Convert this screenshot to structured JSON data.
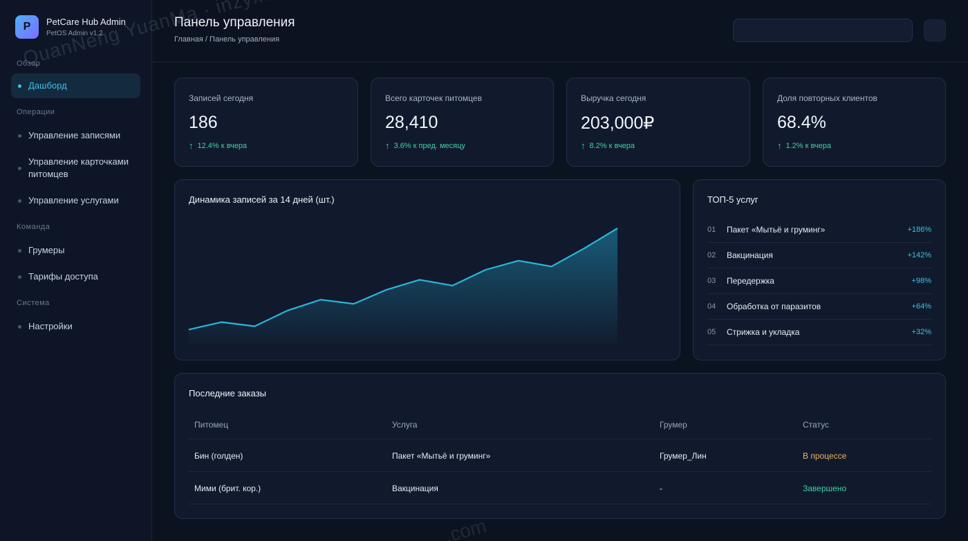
{
  "brand": {
    "name": "PetCare Hub Admin",
    "sub": "PetOS Admin v1.2",
    "logo_letter": "P"
  },
  "sidebar": {
    "groups": [
      {
        "label": "Обзор",
        "items": [
          {
            "label": "Дашборд",
            "active": true
          }
        ]
      },
      {
        "label": "Операции",
        "items": [
          {
            "label": "Управление записями"
          },
          {
            "label": "Управление карточками питомцев"
          },
          {
            "label": "Управление услугами"
          }
        ]
      },
      {
        "label": "Команда",
        "items": [
          {
            "label": "Грумеры"
          },
          {
            "label": "Тарифы доступа"
          }
        ]
      },
      {
        "label": "Система",
        "items": [
          {
            "label": "Настройки"
          }
        ]
      }
    ]
  },
  "header": {
    "title": "Панель управления",
    "breadcrumb": "Главная / Панель управления",
    "search_value": ""
  },
  "stats": [
    {
      "label": "Записей сегодня",
      "value": "186",
      "trend": "12.4% к вчера"
    },
    {
      "label": "Всего карточек питомцев",
      "value": "28,410",
      "trend": "3.6% к пред. месяцу"
    },
    {
      "label": "Выручка сегодня",
      "value": "203,000₽",
      "trend": "8.2% к вчера"
    },
    {
      "label": "Доля повторных клиентов",
      "value": "68.4%",
      "trend": "1.2% к вчера"
    }
  ],
  "trend_arrow": "↑",
  "chart_data": {
    "type": "area",
    "title": "Динамика записей за 14 дней (шт.)",
    "x": [
      1,
      2,
      3,
      4,
      5,
      6,
      7,
      8,
      9,
      10,
      11,
      12,
      13,
      14
    ],
    "values": [
      18,
      27,
      22,
      41,
      54,
      49,
      66,
      78,
      71,
      90,
      101,
      94,
      116,
      140
    ],
    "ylim": [
      0,
      150
    ],
    "grid": false,
    "color": "#2bb6d9"
  },
  "top_services": {
    "title": "ТОП-5 услуг",
    "items": [
      {
        "idx": "01",
        "name": "Пакет «Мытьё и груминг»",
        "value": "+186%"
      },
      {
        "idx": "02",
        "name": "Вакцинация",
        "value": "+142%"
      },
      {
        "idx": "03",
        "name": "Передержка",
        "value": "+98%"
      },
      {
        "idx": "04",
        "name": "Обработка от паразитов",
        "value": "+64%"
      },
      {
        "idx": "05",
        "name": "Стрижка и укладка",
        "value": "+32%"
      }
    ]
  },
  "orders": {
    "title": "Последние заказы",
    "columns": [
      "Питомец",
      "Услуга",
      "Грумер",
      "Статус"
    ],
    "rows": [
      {
        "pet": "Бин (голден)",
        "service": "Пакет «Мытьё и груминг»",
        "groomer": "Грумер_Лин",
        "status": "В процессе",
        "status_type": "progress"
      },
      {
        "pet": "Мими (брит. кор.)",
        "service": "Вакцинация",
        "groomer": "-",
        "status": "Завершено",
        "status_type": "done"
      }
    ]
  },
  "watermark": {
    "text": "QuanNeng YuanMa · inzyxuashop.com",
    "text2": ".com"
  },
  "colors": {
    "accent": "#3ec1e6",
    "positive": "#3fd2a0",
    "warning": "#f0b35a",
    "background": "#0b1220"
  }
}
